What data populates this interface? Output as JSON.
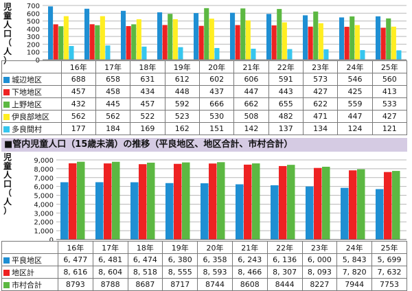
{
  "years": [
    "16年",
    "17年",
    "18年",
    "19年",
    "20年",
    "21年",
    "22年",
    "23年",
    "24年",
    "25年"
  ],
  "colors": {
    "blue": "#1f8fd3",
    "red": "#ee2222",
    "green": "#5cb842",
    "yellow": "#ffee22",
    "cyan": "#36c6ee"
  },
  "section2_title": "■管内児童人口（15歳未満）の推移（平良地区、地区合計、市村合計）",
  "chart_data": [
    {
      "type": "bar",
      "ylabel": "児童人口（人）",
      "ylim": [
        0,
        700
      ],
      "yticks": [
        0,
        100,
        200,
        300,
        400,
        500,
        600,
        700
      ],
      "grid": true,
      "categories": [
        "16年",
        "17年",
        "18年",
        "19年",
        "20年",
        "21年",
        "22年",
        "23年",
        "24年",
        "25年"
      ],
      "series": [
        {
          "name": "城辺地区",
          "values": [
            688,
            658,
            631,
            612,
            602,
            606,
            591,
            573,
            546,
            560
          ],
          "display": [
            "688",
            "658",
            "631",
            "612",
            "602",
            "606",
            "591",
            "573",
            "546",
            "560"
          ],
          "color": "#1f8fd3"
        },
        {
          "name": "下地地区",
          "values": [
            457,
            458,
            434,
            448,
            437,
            447,
            443,
            427,
            425,
            413
          ],
          "display": [
            "457",
            "458",
            "434",
            "448",
            "437",
            "447",
            "443",
            "427",
            "425",
            "413"
          ],
          "color": "#ee2222"
        },
        {
          "name": "上野地区",
          "values": [
            432,
            445,
            457,
            592,
            666,
            662,
            655,
            622,
            559,
            533
          ],
          "display": [
            "432",
            "445",
            "457",
            "592",
            "666",
            "662",
            "655",
            "622",
            "559",
            "533"
          ],
          "color": "#5cb842"
        },
        {
          "name": "伊良部地区",
          "values": [
            562,
            562,
            522,
            523,
            530,
            508,
            482,
            471,
            447,
            427
          ],
          "display": [
            "562",
            "562",
            "522",
            "523",
            "530",
            "508",
            "482",
            "471",
            "447",
            "427"
          ],
          "color": "#ffee22"
        },
        {
          "name": "多良間村",
          "values": [
            177,
            184,
            169,
            162,
            151,
            142,
            137,
            134,
            124,
            121
          ],
          "display": [
            "177",
            "184",
            "169",
            "162",
            "151",
            "142",
            "137",
            "134",
            "124",
            "121"
          ],
          "color": "#36c6ee"
        }
      ]
    },
    {
      "type": "bar",
      "ylabel": "児童人口（人）",
      "ylim": [
        0,
        9000
      ],
      "yticks": [
        0,
        1000,
        2000,
        3000,
        4000,
        5000,
        6000,
        7000,
        8000,
        9000
      ],
      "ytick_labels": [
        "0",
        "1,000",
        "2,000",
        "3,000",
        "4,000",
        "5,000",
        "6,000",
        "7,000",
        "8,000",
        "9,000"
      ],
      "grid": true,
      "categories": [
        "16年",
        "17年",
        "18年",
        "19年",
        "20年",
        "21年",
        "22年",
        "23年",
        "24年",
        "25年"
      ],
      "series": [
        {
          "name": "平良地区",
          "values": [
            6477,
            6481,
            6474,
            6380,
            6358,
            6243,
            6136,
            6000,
            5843,
            5699
          ],
          "display": [
            "6, 477",
            "6, 481",
            "6, 474",
            "6, 380",
            "6, 358",
            "6, 243",
            "6, 136",
            "6, 000",
            "5, 843",
            "5, 699"
          ],
          "color": "#1f8fd3"
        },
        {
          "name": "地区計",
          "values": [
            8616,
            8604,
            8518,
            8555,
            8593,
            8466,
            8307,
            8093,
            7820,
            7632
          ],
          "display": [
            "8, 616",
            "8, 604",
            "8, 518",
            "8, 555",
            "8, 593",
            "8, 466",
            "8, 307",
            "8, 093",
            "7, 820",
            "7, 632"
          ],
          "color": "#ee2222"
        },
        {
          "name": "市村合計",
          "values": [
            8793,
            8788,
            8687,
            8717,
            8744,
            8608,
            8444,
            8227,
            7944,
            7753
          ],
          "display": [],
          "color": "#5cb842"
        }
      ]
    }
  ]
}
